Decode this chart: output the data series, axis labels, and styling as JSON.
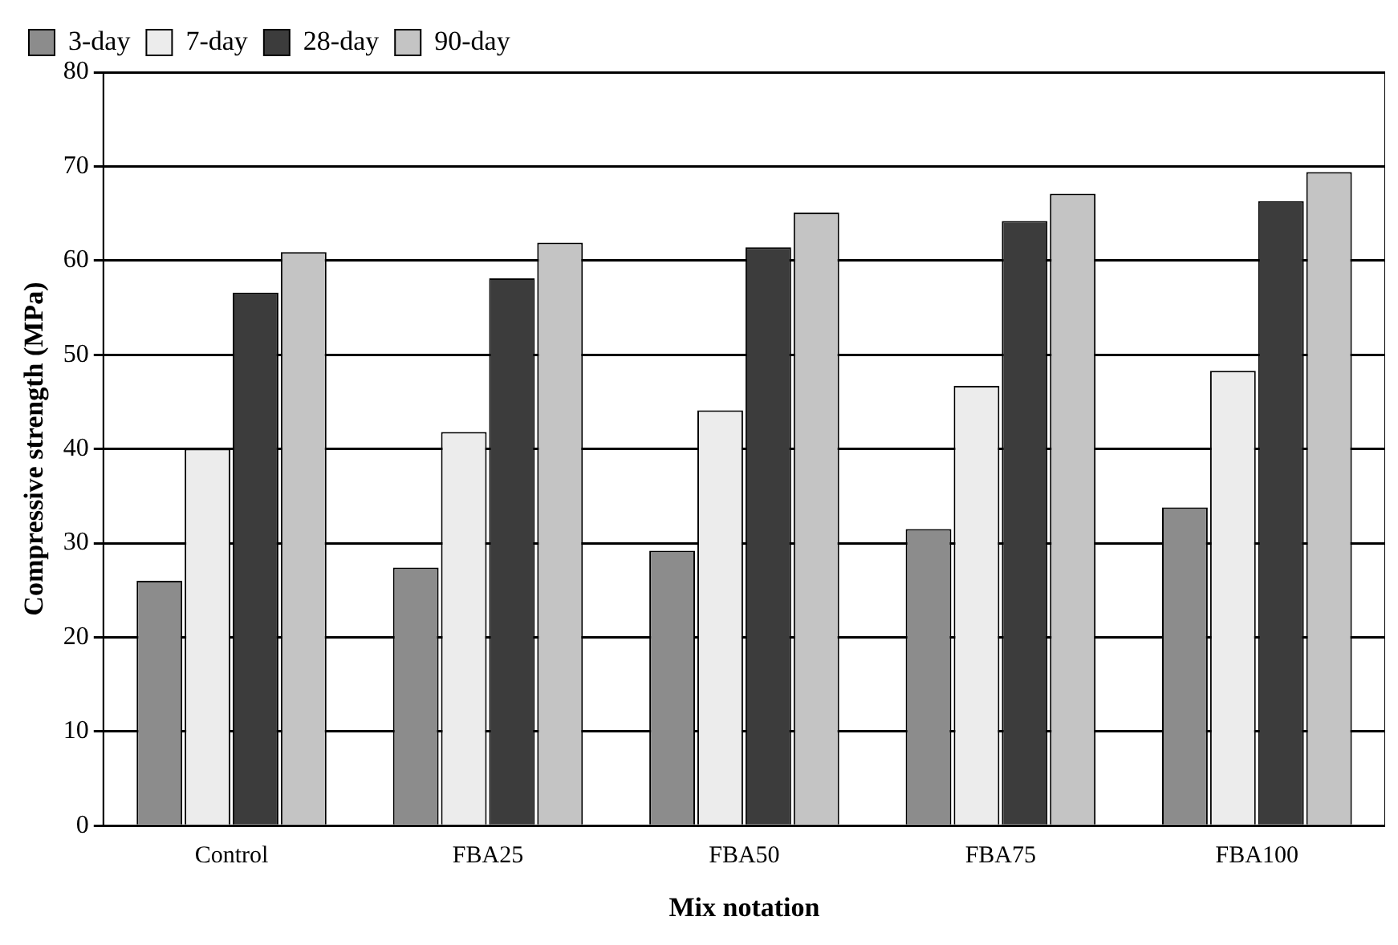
{
  "chart_data": {
    "type": "bar",
    "xlabel": "Mix notation",
    "ylabel": "Compressive strength (MPa)",
    "categories": [
      "Control",
      "FBA25",
      "FBA50",
      "FBA75",
      "FBA100"
    ],
    "series": [
      {
        "name": "3-day",
        "color": "#8c8c8c",
        "values": [
          26,
          27.4,
          29.2,
          31.5,
          33.8
        ]
      },
      {
        "name": "7-day",
        "color": "#ececec",
        "values": [
          40,
          41.8,
          44.1,
          46.7,
          48.3
        ]
      },
      {
        "name": "28-day",
        "color": "#3c3c3c",
        "values": [
          56.6,
          58.1,
          61.4,
          64.2,
          66.3
        ]
      },
      {
        "name": "90-day",
        "color": "#c4c4c4",
        "values": [
          60.9,
          61.9,
          65.1,
          67.1,
          69.4
        ]
      }
    ],
    "ylim": [
      0,
      80
    ],
    "yticks": [
      0,
      10,
      20,
      30,
      40,
      50,
      60,
      70,
      80
    ],
    "grid": "y",
    "legend": "top left"
  }
}
